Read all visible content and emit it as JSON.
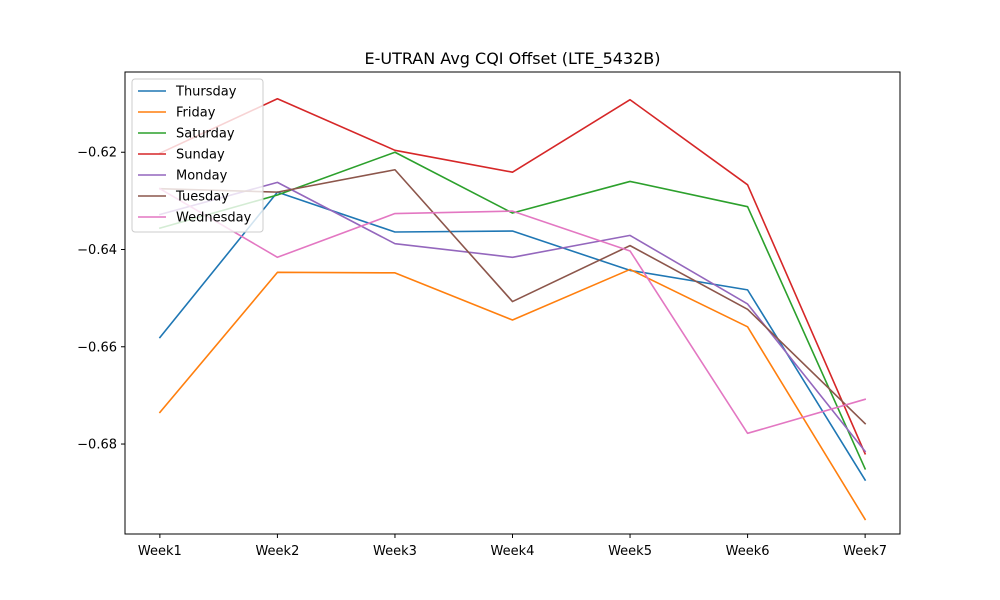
{
  "chart_data": {
    "type": "line",
    "title": "E-UTRAN Avg CQI Offset (LTE_5432B)",
    "xlabel": "",
    "ylabel": "",
    "categories": [
      "Week1",
      "Week2",
      "Week3",
      "Week4",
      "Week5",
      "Week6",
      "Week7"
    ],
    "ylim": [
      -0.6985,
      -0.6035
    ],
    "yticks": [
      -0.62,
      -0.64,
      -0.66,
      -0.68
    ],
    "grid": false,
    "legend_position": "top-left",
    "series": [
      {
        "name": "Thursday",
        "color": "#1f77b4",
        "values": [
          -0.6581,
          -0.6282,
          -0.6364,
          -0.6362,
          -0.6443,
          -0.6483,
          -0.6874
        ]
      },
      {
        "name": "Friday",
        "color": "#ff7f0e",
        "values": [
          -0.6735,
          -0.6447,
          -0.6448,
          -0.6545,
          -0.6441,
          -0.6559,
          -0.6955
        ]
      },
      {
        "name": "Saturday",
        "color": "#2ca02c",
        "values": [
          -0.6356,
          -0.6288,
          -0.62,
          -0.6325,
          -0.626,
          -0.6312,
          -0.6851
        ]
      },
      {
        "name": "Sunday",
        "color": "#d62728",
        "values": [
          -0.6202,
          -0.609,
          -0.6196,
          -0.6241,
          -0.6092,
          -0.6267,
          -0.682
        ]
      },
      {
        "name": "Monday",
        "color": "#9467bd",
        "values": [
          -0.6328,
          -0.6262,
          -0.6388,
          -0.6416,
          -0.6371,
          -0.6512,
          -0.6815
        ]
      },
      {
        "name": "Tuesday",
        "color": "#8c564b",
        "values": [
          -0.6275,
          -0.6282,
          -0.6236,
          -0.6507,
          -0.6392,
          -0.6523,
          -0.6758
        ]
      },
      {
        "name": "Wednesday",
        "color": "#e377c2",
        "values": [
          -0.6275,
          -0.6416,
          -0.6326,
          -0.6321,
          -0.6403,
          -0.6778,
          -0.6708
        ]
      }
    ]
  }
}
